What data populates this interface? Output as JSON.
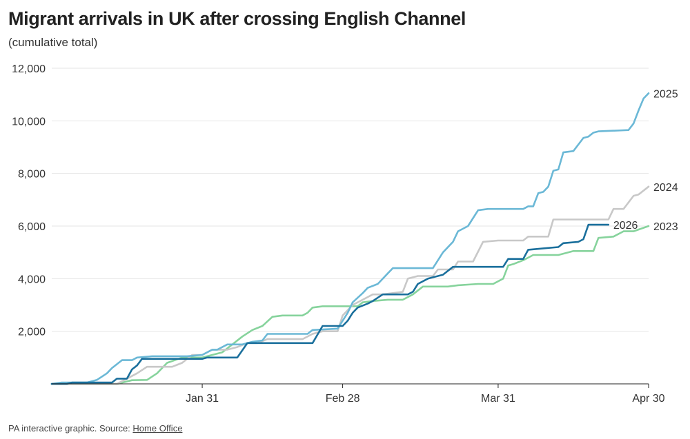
{
  "header": {
    "title": "Migrant arrivals in UK after crossing English Channel",
    "subtitle": "(cumulative total)"
  },
  "footer": {
    "text": "PA interactive graphic. Source: ",
    "link": "Home Office"
  },
  "chart_data": {
    "type": "line",
    "title": "Migrant arrivals in UK after crossing English Channel",
    "subtitle": "(cumulative total)",
    "xlabel": "",
    "ylabel": "",
    "x_ticks": [
      {
        "label": "Jan 31",
        "day": 31
      },
      {
        "label": "Feb 28",
        "day": 59
      },
      {
        "label": "Mar 31",
        "day": 90
      },
      {
        "label": "Apr 30",
        "day": 120
      }
    ],
    "y_ticks": [
      2000,
      4000,
      6000,
      8000,
      10000,
      12000
    ],
    "y_tick_labels": [
      "2,000",
      "4,000",
      "6,000",
      "8,000",
      "10,000",
      "12,000"
    ],
    "xlim": [
      1,
      120
    ],
    "ylim": [
      0,
      12000
    ],
    "grid": "horizontal",
    "colors": {
      "2023": "#86d39c",
      "2024": "#c8c8c8",
      "2025": "#6bb8d6",
      "2026": "#1a6f9c",
      "grid": "#e6e6e6",
      "axis": "#222222"
    },
    "series": [
      {
        "name": "2023",
        "label": "2023",
        "points": [
          [
            1,
            0
          ],
          [
            14,
            0
          ],
          [
            17,
            140
          ],
          [
            20,
            150
          ],
          [
            22,
            400
          ],
          [
            24,
            800
          ],
          [
            27,
            1000
          ],
          [
            31,
            1000
          ],
          [
            35,
            1200
          ],
          [
            37,
            1500
          ],
          [
            39,
            1800
          ],
          [
            41,
            2050
          ],
          [
            43,
            2200
          ],
          [
            45,
            2550
          ],
          [
            47,
            2600
          ],
          [
            49,
            2600
          ],
          [
            51,
            2600
          ],
          [
            52,
            2700
          ],
          [
            53,
            2900
          ],
          [
            55,
            2950
          ],
          [
            58,
            2950
          ],
          [
            62,
            2950
          ],
          [
            63,
            3100
          ],
          [
            65,
            3150
          ],
          [
            68,
            3200
          ],
          [
            71,
            3200
          ],
          [
            73,
            3400
          ],
          [
            75,
            3700
          ],
          [
            80,
            3700
          ],
          [
            82,
            3750
          ],
          [
            86,
            3800
          ],
          [
            89,
            3800
          ],
          [
            91,
            4000
          ],
          [
            92,
            4500
          ],
          [
            93,
            4550
          ],
          [
            95,
            4700
          ],
          [
            97,
            4900
          ],
          [
            102,
            4900
          ],
          [
            103,
            4950
          ],
          [
            105,
            5050
          ],
          [
            109,
            5050
          ],
          [
            110,
            5550
          ],
          [
            113,
            5600
          ],
          [
            115,
            5800
          ],
          [
            117,
            5800
          ],
          [
            120,
            6000
          ]
        ]
      },
      {
        "name": "2024",
        "label": "2024",
        "points": [
          [
            1,
            0
          ],
          [
            14,
            0
          ],
          [
            15,
            100
          ],
          [
            18,
            400
          ],
          [
            20,
            650
          ],
          [
            25,
            650
          ],
          [
            27,
            800
          ],
          [
            29,
            1100
          ],
          [
            31,
            1100
          ],
          [
            33,
            1300
          ],
          [
            36,
            1300
          ],
          [
            38,
            1400
          ],
          [
            40,
            1550
          ],
          [
            42,
            1550
          ],
          [
            44,
            1700
          ],
          [
            49,
            1700
          ],
          [
            51,
            1700
          ],
          [
            53,
            1900
          ],
          [
            55,
            2000
          ],
          [
            58,
            2000
          ],
          [
            59,
            2600
          ],
          [
            61,
            3000
          ],
          [
            63,
            3200
          ],
          [
            65,
            3400
          ],
          [
            67,
            3400
          ],
          [
            69,
            3450
          ],
          [
            71,
            3500
          ],
          [
            72,
            4000
          ],
          [
            74,
            4100
          ],
          [
            77,
            4100
          ],
          [
            78,
            4350
          ],
          [
            81,
            4350
          ],
          [
            82,
            4650
          ],
          [
            85,
            4650
          ],
          [
            87,
            5400
          ],
          [
            90,
            5450
          ],
          [
            95,
            5450
          ],
          [
            96,
            5600
          ],
          [
            100,
            5600
          ],
          [
            101,
            6250
          ],
          [
            104,
            6250
          ],
          [
            107,
            6250
          ],
          [
            109,
            6250
          ],
          [
            112,
            6250
          ],
          [
            113,
            6650
          ],
          [
            115,
            6650
          ],
          [
            117,
            7150
          ],
          [
            118,
            7200
          ],
          [
            120,
            7500
          ]
        ]
      },
      {
        "name": "2025",
        "label": "2025",
        "points": [
          [
            1,
            0
          ],
          [
            3,
            50
          ],
          [
            8,
            50
          ],
          [
            10,
            150
          ],
          [
            12,
            400
          ],
          [
            13,
            600
          ],
          [
            15,
            900
          ],
          [
            17,
            900
          ],
          [
            18,
            1000
          ],
          [
            21,
            1050
          ],
          [
            28,
            1050
          ],
          [
            31,
            1100
          ],
          [
            33,
            1300
          ],
          [
            34,
            1300
          ],
          [
            36,
            1500
          ],
          [
            39,
            1500
          ],
          [
            41,
            1600
          ],
          [
            43,
            1650
          ],
          [
            44,
            1900
          ],
          [
            52,
            1900
          ],
          [
            53,
            2050
          ],
          [
            58,
            2100
          ],
          [
            60,
            2700
          ],
          [
            61,
            3100
          ],
          [
            63,
            3450
          ],
          [
            64,
            3650
          ],
          [
            66,
            3800
          ],
          [
            68,
            4200
          ],
          [
            69,
            4400
          ],
          [
            77,
            4400
          ],
          [
            79,
            5000
          ],
          [
            81,
            5400
          ],
          [
            82,
            5800
          ],
          [
            84,
            6000
          ],
          [
            85,
            6300
          ],
          [
            86,
            6600
          ],
          [
            88,
            6650
          ],
          [
            95,
            6650
          ],
          [
            96,
            6750
          ],
          [
            97,
            6750
          ],
          [
            98,
            7250
          ],
          [
            99,
            7300
          ],
          [
            100,
            7500
          ],
          [
            101,
            8100
          ],
          [
            102,
            8150
          ],
          [
            103,
            8800
          ],
          [
            105,
            8850
          ],
          [
            107,
            9350
          ],
          [
            108,
            9400
          ],
          [
            109,
            9550
          ],
          [
            110,
            9600
          ],
          [
            116,
            9650
          ],
          [
            117,
            9900
          ],
          [
            118,
            10400
          ],
          [
            119,
            10850
          ],
          [
            120,
            11050
          ]
        ]
      },
      {
        "name": "2026",
        "label": "2026",
        "points": [
          [
            1,
            0
          ],
          [
            4,
            0
          ],
          [
            5,
            50
          ],
          [
            13,
            50
          ],
          [
            14,
            200
          ],
          [
            16,
            200
          ],
          [
            17,
            550
          ],
          [
            18,
            700
          ],
          [
            19,
            950
          ],
          [
            27,
            950
          ],
          [
            31,
            950
          ],
          [
            32,
            1000
          ],
          [
            38,
            1000
          ],
          [
            40,
            1550
          ],
          [
            47,
            1550
          ],
          [
            49,
            1550
          ],
          [
            53,
            1550
          ],
          [
            55,
            2200
          ],
          [
            59,
            2200
          ],
          [
            60,
            2400
          ],
          [
            61,
            2700
          ],
          [
            62,
            2900
          ],
          [
            64,
            3050
          ],
          [
            65,
            3150
          ],
          [
            67,
            3400
          ],
          [
            72,
            3400
          ],
          [
            73,
            3500
          ],
          [
            74,
            3800
          ],
          [
            76,
            4000
          ],
          [
            79,
            4150
          ],
          [
            81,
            4450
          ],
          [
            91,
            4450
          ],
          [
            92,
            4750
          ],
          [
            95,
            4750
          ],
          [
            96,
            5100
          ],
          [
            99,
            5150
          ],
          [
            102,
            5200
          ],
          [
            103,
            5350
          ],
          [
            106,
            5400
          ],
          [
            107,
            5500
          ],
          [
            108,
            6050
          ],
          [
            112,
            6050
          ]
        ]
      }
    ]
  }
}
